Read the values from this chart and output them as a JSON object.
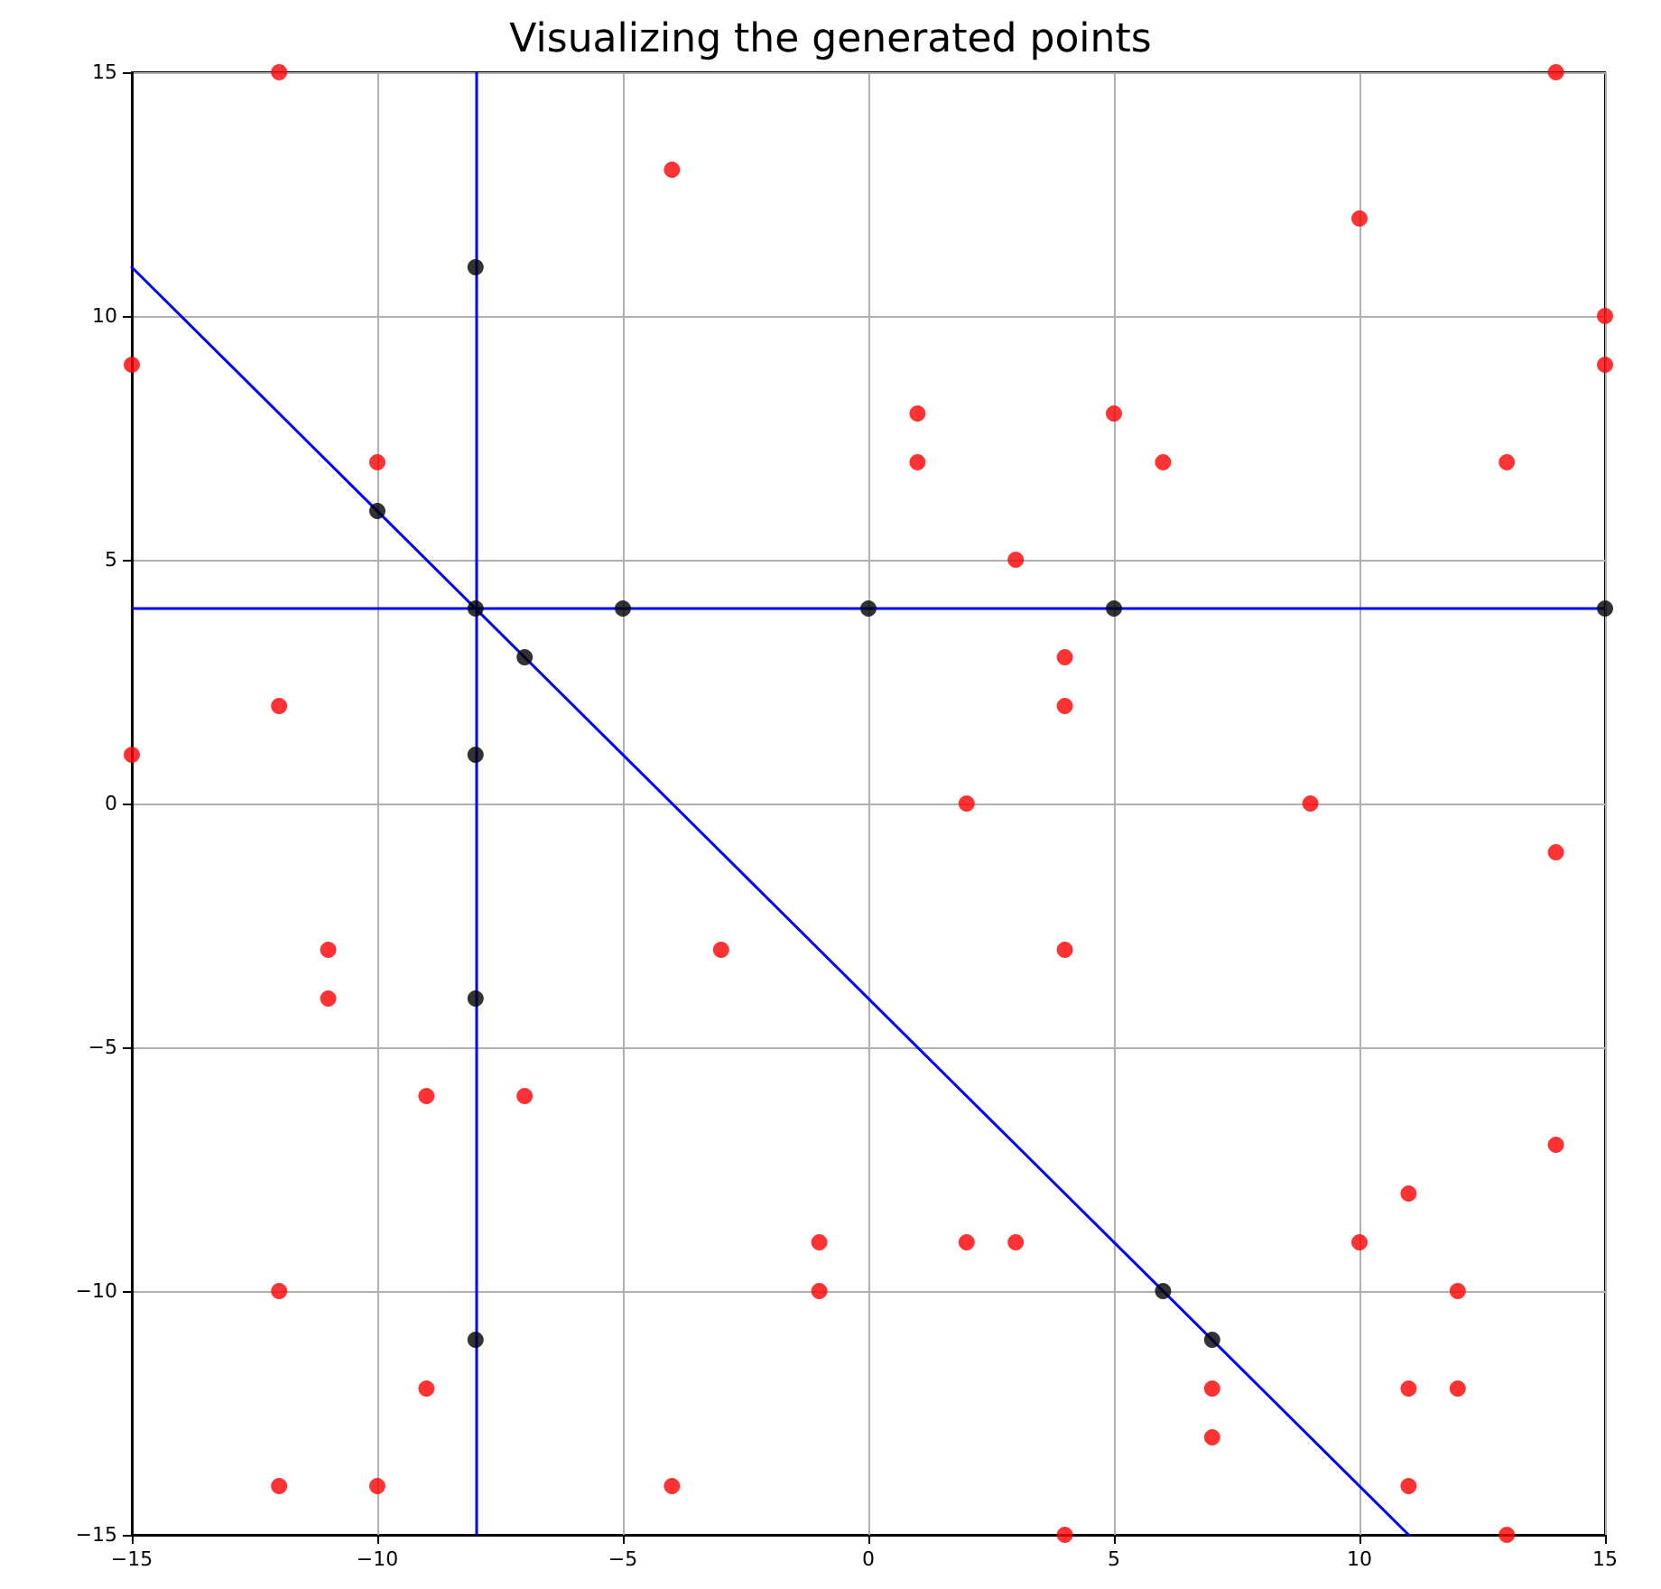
{
  "chart_data": {
    "type": "scatter",
    "title": "Visualizing the generated points",
    "xlim": [
      -15,
      15
    ],
    "ylim": [
      -15,
      15
    ],
    "xticks": [
      {
        "value": -15,
        "label": "−15"
      },
      {
        "value": -10,
        "label": "−10"
      },
      {
        "value": -5,
        "label": "−5"
      },
      0,
      5,
      10,
      15
    ],
    "yticks": [
      {
        "value": -15,
        "label": "−15"
      },
      {
        "value": -10,
        "label": "−10"
      },
      {
        "value": -5,
        "label": "−5"
      },
      0,
      5,
      10,
      15
    ],
    "grid": true,
    "marker": "circle",
    "ref_lines": [
      {
        "axis": "x",
        "value": -8,
        "color": "#0000ff",
        "line_style": "solid"
      },
      {
        "axis": "y",
        "value": 4,
        "color": "#0000ff",
        "line_style": "solid"
      }
    ],
    "series": [
      {
        "type": "line",
        "color": "#0000ff",
        "x": [
          -15,
          11
        ],
        "values": [
          11,
          -15
        ],
        "marker": "none",
        "line_style": "solid"
      },
      {
        "color": "#ff0000",
        "x": [
          -12,
          14,
          -4,
          10,
          15,
          15,
          -15,
          1,
          5,
          1,
          -10,
          6,
          13,
          3,
          4,
          4,
          -12,
          -15,
          2,
          9,
          14,
          -11,
          -3,
          4,
          -11,
          -9,
          -7,
          14,
          11,
          -1,
          2,
          3,
          10,
          -12,
          -1,
          12,
          -9,
          7,
          11,
          12,
          7,
          -12,
          -10,
          -4,
          11,
          4,
          13
        ],
        "values": [
          15,
          15,
          13,
          12,
          10,
          9,
          9,
          8,
          8,
          7,
          7,
          7,
          7,
          5,
          3,
          2,
          2,
          1,
          0,
          0,
          -1,
          -3,
          -3,
          -3,
          -4,
          -6,
          -6,
          -7,
          -8,
          -9,
          -9,
          -9,
          -9,
          -10,
          -10,
          -10,
          -12,
          -12,
          -12,
          -12,
          -13,
          -14,
          -14,
          -14,
          -14,
          -15,
          -15
        ]
      },
      {
        "color": "#000000",
        "x": [
          -8,
          -10,
          -8,
          -5,
          0,
          5,
          15,
          -7,
          -8,
          -8,
          6,
          7,
          -8
        ],
        "values": [
          11,
          6,
          4,
          4,
          4,
          4,
          4,
          3,
          1,
          -4,
          -10,
          -11,
          -11
        ]
      }
    ]
  }
}
